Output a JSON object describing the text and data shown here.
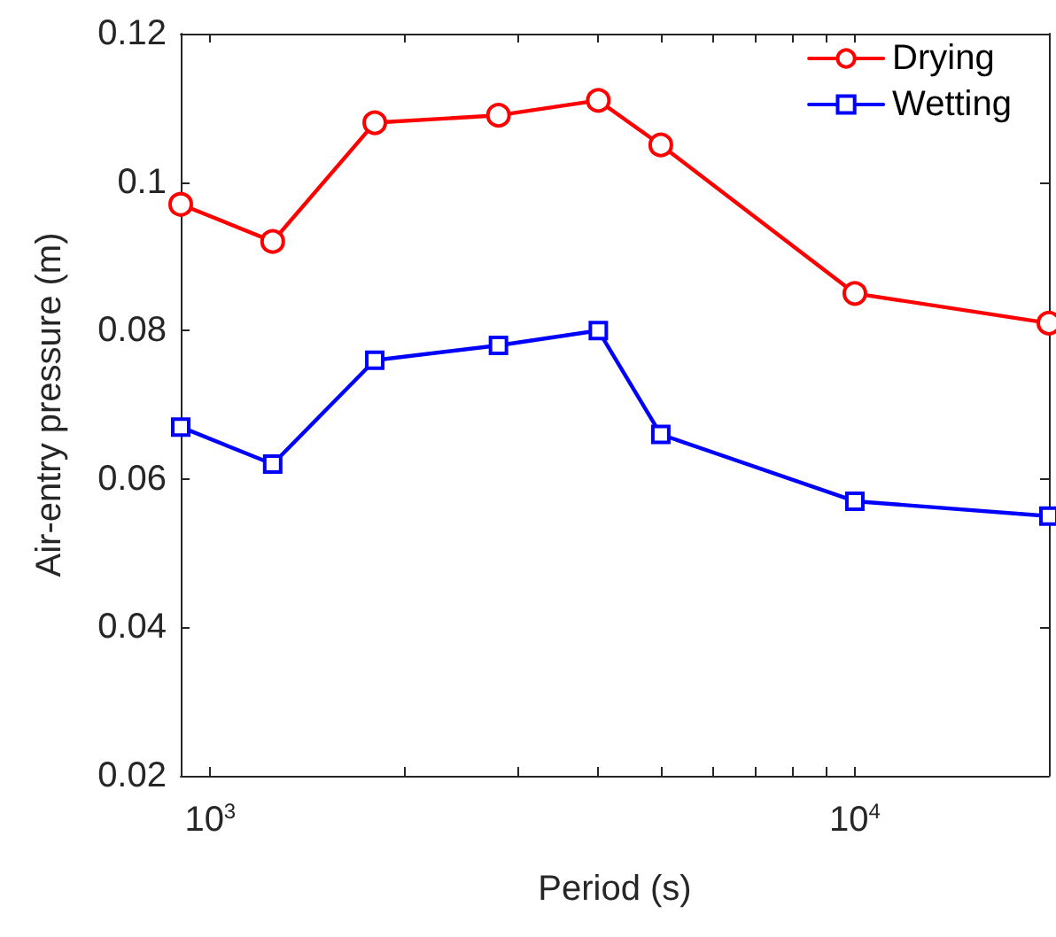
{
  "chart_data": {
    "type": "line",
    "xlabel": "Period (s)",
    "ylabel": "Air-entry pressure (m)",
    "x": [
      900,
      1250,
      1800,
      2800,
      4000,
      5000,
      10000,
      20000
    ],
    "series": [
      {
        "name": "Drying",
        "color": "#ff0000",
        "marker": "circle",
        "values": [
          0.097,
          0.092,
          0.108,
          0.109,
          0.111,
          0.105,
          0.085,
          0.081
        ]
      },
      {
        "name": "Wetting",
        "color": "#0000ff",
        "marker": "square",
        "values": [
          0.067,
          0.062,
          0.076,
          0.078,
          0.08,
          0.066,
          0.057,
          0.055
        ]
      }
    ],
    "log": "x",
    "xlim": [
      900,
      20000
    ],
    "xticks": [
      {
        "value": 1000,
        "label": "10$^{3}$"
      },
      {
        "value": 2000,
        "label": null
      },
      {
        "value": 3000,
        "label": null
      },
      {
        "value": 4000,
        "label": null
      },
      {
        "value": 5000,
        "label": null
      },
      {
        "value": 6000,
        "label": null
      },
      {
        "value": 7000,
        "label": null
      },
      {
        "value": 8000,
        "label": null
      },
      {
        "value": 9000,
        "label": null
      },
      {
        "value": 10000,
        "label": "10$^{4}$"
      }
    ],
    "ylim": [
      0.02,
      0.12
    ],
    "yticks": [
      0.02,
      0.04,
      0.06,
      0.08,
      0.1,
      0.12
    ],
    "legend": "top right",
    "grid": false,
    "line_style": "solid"
  }
}
